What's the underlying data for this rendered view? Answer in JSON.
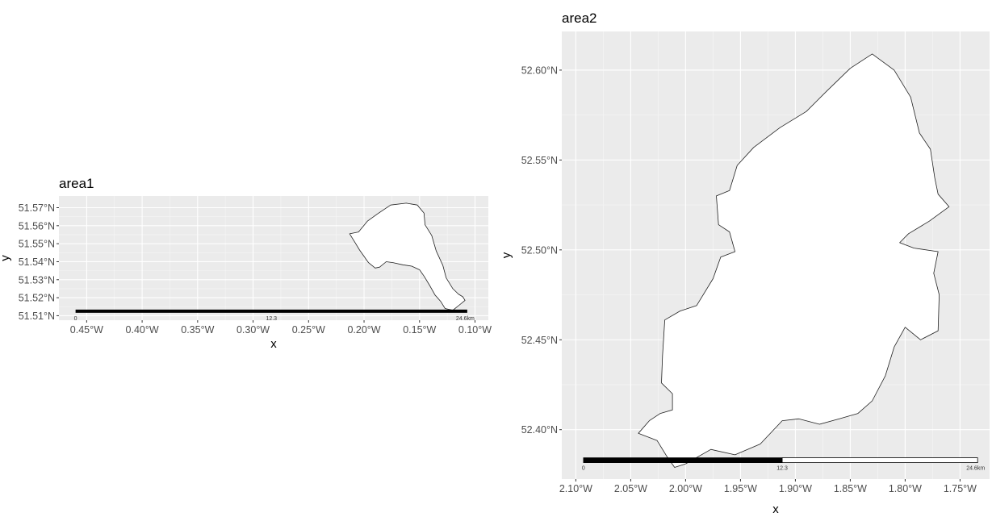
{
  "chart_data": [
    {
      "type": "map",
      "title": "area1",
      "xlabel": "x",
      "ylabel": "y",
      "xlim": [
        -0.475,
        -0.088
      ],
      "ylim": [
        51.5075,
        51.5765
      ],
      "xticks": [
        "0.45°W",
        "0.40°W",
        "0.35°W",
        "0.30°W",
        "0.25°W",
        "0.20°W",
        "0.15°W",
        "0.10°W"
      ],
      "xtick_values": [
        -0.45,
        -0.4,
        -0.35,
        -0.3,
        -0.25,
        -0.2,
        -0.15,
        -0.1
      ],
      "yticks": [
        "51.51°N",
        "51.52°N",
        "51.53°N",
        "51.54°N",
        "51.55°N",
        "51.56°N",
        "51.57°N"
      ],
      "ytick_values": [
        51.51,
        51.52,
        51.53,
        51.54,
        51.55,
        51.56,
        51.57
      ],
      "grid": true,
      "polygon": [
        [
          -0.213,
          51.5555
        ],
        [
          -0.205,
          51.5565
        ],
        [
          -0.197,
          51.5625
        ],
        [
          -0.188,
          51.5665
        ],
        [
          -0.176,
          51.5715
        ],
        [
          -0.162,
          51.5725
        ],
        [
          -0.152,
          51.5715
        ],
        [
          -0.146,
          51.567
        ],
        [
          -0.145,
          51.5605
        ],
        [
          -0.139,
          51.5545
        ],
        [
          -0.135,
          51.546
        ],
        [
          -0.129,
          51.538
        ],
        [
          -0.126,
          51.531
        ],
        [
          -0.12,
          51.525
        ],
        [
          -0.115,
          51.522
        ],
        [
          -0.111,
          51.5205
        ],
        [
          -0.109,
          51.5185
        ],
        [
          -0.114,
          51.516
        ],
        [
          -0.12,
          51.513
        ],
        [
          -0.127,
          51.514
        ],
        [
          -0.131,
          51.518
        ],
        [
          -0.136,
          51.5215
        ],
        [
          -0.141,
          51.527
        ],
        [
          -0.146,
          51.532
        ],
        [
          -0.15,
          51.5355
        ],
        [
          -0.157,
          51.5375
        ],
        [
          -0.165,
          51.5383
        ],
        [
          -0.174,
          51.5395
        ],
        [
          -0.18,
          51.54
        ],
        [
          -0.186,
          51.537
        ],
        [
          -0.19,
          51.5365
        ],
        [
          -0.196,
          51.5395
        ],
        [
          -0.204,
          51.5465
        ],
        [
          -0.209,
          51.5515
        ],
        [
          -0.213,
          51.5555
        ]
      ],
      "scalebar": {
        "labels": [
          "0",
          "12.3",
          "24.6km"
        ],
        "x_from": -0.46,
        "x_to": -0.107,
        "y": 51.5125
      }
    },
    {
      "type": "map",
      "title": "area2",
      "xlabel": "x",
      "ylabel": "y",
      "xlim": [
        -2.1128,
        -1.7231
      ],
      "ylim": [
        52.3725,
        52.6215
      ],
      "xticks": [
        "2.10°W",
        "2.05°W",
        "2.00°W",
        "1.95°W",
        "1.90°W",
        "1.85°W",
        "1.80°W",
        "1.75°W"
      ],
      "xtick_values": [
        -2.1,
        -2.05,
        -2.0,
        -1.95,
        -1.9,
        -1.85,
        -1.8,
        -1.75
      ],
      "yticks": [
        "52.40°N",
        "52.45°N",
        "52.50°N",
        "52.55°N",
        "52.60°N"
      ],
      "ytick_values": [
        52.4,
        52.45,
        52.5,
        52.55,
        52.6
      ],
      "grid": true,
      "polygon": [
        [
          -1.83,
          52.609
        ],
        [
          -1.81,
          52.6
        ],
        [
          -1.795,
          52.585
        ],
        [
          -1.787,
          52.565
        ],
        [
          -1.777,
          52.556
        ],
        [
          -1.773,
          52.54
        ],
        [
          -1.77,
          52.531
        ],
        [
          -1.76,
          52.524
        ],
        [
          -1.778,
          52.516
        ],
        [
          -1.797,
          52.509
        ],
        [
          -1.805,
          52.504
        ],
        [
          -1.792,
          52.501
        ],
        [
          -1.77,
          52.499
        ],
        [
          -1.774,
          52.487
        ],
        [
          -1.769,
          52.475
        ],
        [
          -1.77,
          52.455
        ],
        [
          -1.786,
          52.45
        ],
        [
          -1.8,
          52.457
        ],
        [
          -1.81,
          52.446
        ],
        [
          -1.818,
          52.43
        ],
        [
          -1.83,
          52.416
        ],
        [
          -1.843,
          52.409
        ],
        [
          -1.86,
          52.406
        ],
        [
          -1.878,
          52.403
        ],
        [
          -1.897,
          52.406
        ],
        [
          -1.912,
          52.405
        ],
        [
          -1.932,
          52.392
        ],
        [
          -1.955,
          52.386
        ],
        [
          -1.977,
          52.389
        ],
        [
          -2.0,
          52.381
        ],
        [
          -2.01,
          52.379
        ],
        [
          -2.017,
          52.385
        ],
        [
          -2.026,
          52.394
        ],
        [
          -2.043,
          52.398
        ],
        [
          -2.033,
          52.405
        ],
        [
          -2.023,
          52.409
        ],
        [
          -2.012,
          52.411
        ],
        [
          -2.012,
          52.42
        ],
        [
          -2.022,
          52.426
        ],
        [
          -2.021,
          52.441
        ],
        [
          -2.019,
          52.461
        ],
        [
          -2.005,
          52.466
        ],
        [
          -1.99,
          52.469
        ],
        [
          -1.975,
          52.484
        ],
        [
          -1.968,
          52.496
        ],
        [
          -1.955,
          52.499
        ],
        [
          -1.96,
          52.51
        ],
        [
          -1.97,
          52.514
        ],
        [
          -1.972,
          52.53
        ],
        [
          -1.96,
          52.533
        ],
        [
          -1.953,
          52.547
        ],
        [
          -1.938,
          52.557
        ],
        [
          -1.914,
          52.568
        ],
        [
          -1.89,
          52.577
        ],
        [
          -1.872,
          52.588
        ],
        [
          -1.85,
          52.601
        ],
        [
          -1.83,
          52.609
        ]
      ],
      "scalebar": {
        "labels": [
          "0",
          "12.3",
          "24.6km"
        ],
        "x_from": -2.093,
        "x_mid": -1.912,
        "x_to": -1.734,
        "y": 52.383
      }
    }
  ]
}
